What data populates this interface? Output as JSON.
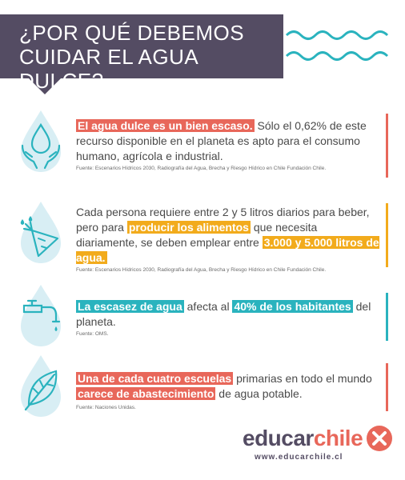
{
  "header": {
    "title_line1": "¿POR QUÉ DEBEMOS",
    "title_line2": "CUIDAR EL AGUA DULCE?"
  },
  "sections": [
    {
      "accent": "#e8675a",
      "icon": "water-drop-hands-icon",
      "highlight1": "El agua dulce es un bien escaso.",
      "text1": " Sólo el 0,62% de este recurso disponible en el planeta es apto para el consumo humano, agrícola e industrial.",
      "source": "Fuente: Escenarios Hídricos 2030, Radiografía del Agua, Brecha y Riesgo Hídrico en Chile Fundación Chile."
    },
    {
      "accent": "#f2ab1c",
      "icon": "water-drop-carrot-icon",
      "text1": "Cada persona requiere entre 2 y 5 litros diarios para beber, pero para ",
      "highlight1": "producir los alimentos",
      "text2": " que necesita diariamente, se deben emplear entre ",
      "highlight2": "3.000 y 5.000 litros de agua.",
      "source": "Fuente: Escenarios Hídricos 2030, Radiografía del Agua, Brecha y Riesgo Hídrico en Chile Fundación Chile."
    },
    {
      "accent": "#2ab3be",
      "icon": "water-drop-faucet-icon",
      "highlight1": "La escasez de agua",
      "text1": " afecta al ",
      "highlight2": "40% de los habitantes",
      "text2": " del planeta.",
      "source": "Fuente: OMS."
    },
    {
      "accent": "#e8675a",
      "icon": "water-drop-leaf-icon",
      "highlight1": "Una de cada cuatro escuelas",
      "text1": " primarias en todo el mundo ",
      "highlight2": "carece de abastecimiento",
      "text2": " de agua potable.",
      "source": "Fuente: Naciones Unidas."
    }
  ],
  "logo": {
    "part1": "educar",
    "part2": "chile",
    "url": "www.educarchile.cl"
  }
}
